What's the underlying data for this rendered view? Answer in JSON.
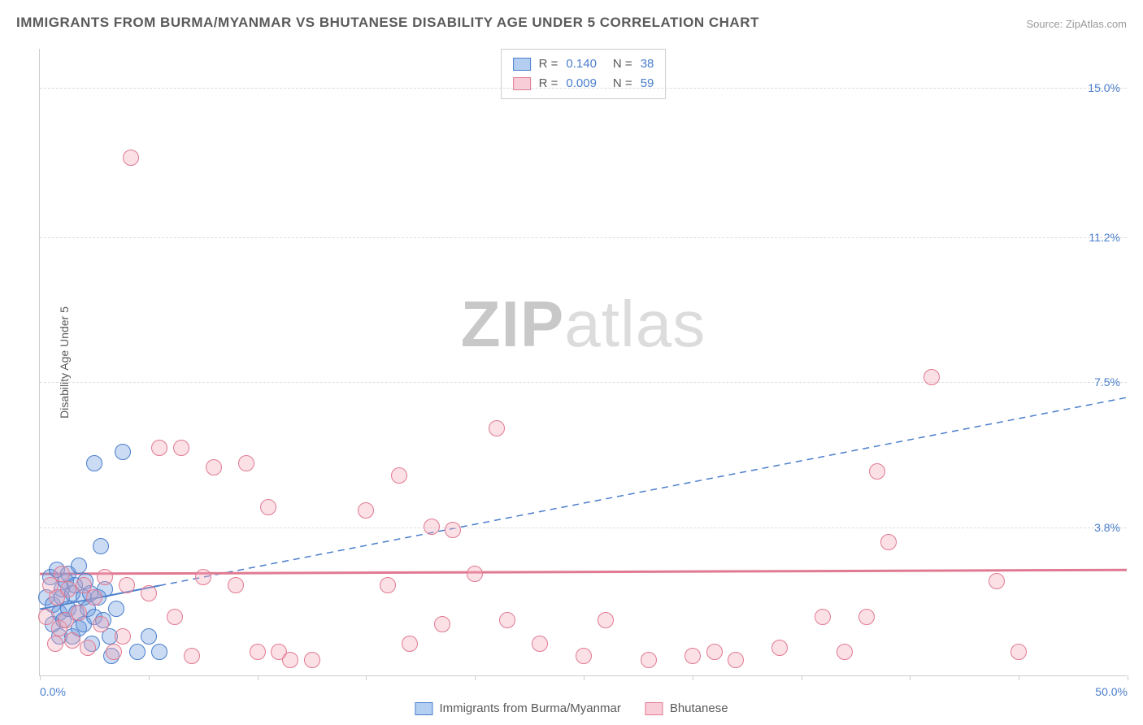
{
  "title": "IMMIGRANTS FROM BURMA/MYANMAR VS BHUTANESE DISABILITY AGE UNDER 5 CORRELATION CHART",
  "source": "Source: ZipAtlas.com",
  "ylabel": "Disability Age Under 5",
  "watermark_a": "ZIP",
  "watermark_b": "atlas",
  "chart": {
    "type": "scatter",
    "background_color": "#ffffff",
    "grid_color": "#dddddd",
    "axis_color": "#cccccc",
    "xlim": [
      0,
      50
    ],
    "ylim": [
      0,
      16
    ],
    "x_ticks": [
      0,
      5,
      10,
      15,
      20,
      25,
      30,
      35,
      40,
      45,
      50
    ],
    "x_tick_labels": {
      "0": "0.0%",
      "50": "50.0%"
    },
    "y_gridlines": [
      3.8,
      7.5,
      11.2,
      15.0
    ],
    "y_tick_labels": [
      "3.8%",
      "7.5%",
      "11.2%",
      "15.0%"
    ],
    "tick_label_color": "#4a7ecc",
    "label_fontsize": 14,
    "title_fontsize": 17,
    "title_color": "#5a5a5a",
    "marker_radius": 10,
    "marker_border_width": 1.5,
    "marker_fill_opacity": 0.35,
    "series": [
      {
        "name": "Immigrants from Burma/Myanmar",
        "color": "#6699dd",
        "border_color": "#4a7ecc",
        "R": "0.140",
        "N": "38",
        "trend": {
          "x1": 0,
          "y1": 1.7,
          "x2": 5.5,
          "y2": 2.3,
          "style": "solid",
          "width": 2
        },
        "trend_ext": {
          "x1": 5.5,
          "y1": 2.3,
          "x2": 50,
          "y2": 7.1,
          "style": "dashed",
          "width": 1.5
        },
        "points": [
          [
            0.3,
            2.0
          ],
          [
            0.5,
            2.5
          ],
          [
            0.6,
            1.3
          ],
          [
            0.6,
            1.8
          ],
          [
            0.8,
            2.7
          ],
          [
            0.9,
            1.0
          ],
          [
            0.9,
            1.6
          ],
          [
            1.0,
            2.0
          ],
          [
            1.0,
            2.2
          ],
          [
            1.1,
            1.4
          ],
          [
            1.2,
            2.4
          ],
          [
            1.3,
            1.7
          ],
          [
            1.3,
            2.6
          ],
          [
            1.5,
            2.1
          ],
          [
            1.5,
            1.0
          ],
          [
            1.6,
            2.3
          ],
          [
            1.7,
            1.6
          ],
          [
            1.8,
            2.8
          ],
          [
            1.8,
            1.2
          ],
          [
            2.0,
            2.0
          ],
          [
            2.0,
            1.3
          ],
          [
            2.1,
            2.4
          ],
          [
            2.2,
            1.7
          ],
          [
            2.3,
            2.1
          ],
          [
            2.4,
            0.8
          ],
          [
            2.5,
            1.5
          ],
          [
            2.7,
            2.0
          ],
          [
            2.8,
            3.3
          ],
          [
            2.9,
            1.4
          ],
          [
            3.0,
            2.2
          ],
          [
            3.2,
            1.0
          ],
          [
            3.3,
            0.5
          ],
          [
            3.5,
            1.7
          ],
          [
            2.5,
            5.4
          ],
          [
            3.8,
            5.7
          ],
          [
            4.5,
            0.6
          ],
          [
            5.0,
            1.0
          ],
          [
            5.5,
            0.6
          ]
        ]
      },
      {
        "name": "Bhutanese",
        "color": "#f4a6b8",
        "border_color": "#e07a92",
        "R": "0.009",
        "N": "59",
        "trend": {
          "x1": 0,
          "y1": 2.6,
          "x2": 50,
          "y2": 2.7,
          "style": "solid",
          "width": 3
        },
        "points": [
          [
            0.3,
            1.5
          ],
          [
            0.5,
            2.3
          ],
          [
            0.7,
            0.8
          ],
          [
            0.8,
            2.0
          ],
          [
            0.9,
            1.2
          ],
          [
            1.0,
            2.6
          ],
          [
            1.2,
            1.4
          ],
          [
            1.3,
            2.2
          ],
          [
            1.5,
            0.9
          ],
          [
            1.8,
            1.6
          ],
          [
            2.0,
            2.3
          ],
          [
            2.2,
            0.7
          ],
          [
            2.5,
            2.0
          ],
          [
            2.8,
            1.3
          ],
          [
            3.0,
            2.5
          ],
          [
            3.4,
            0.6
          ],
          [
            3.8,
            1.0
          ],
          [
            4.0,
            2.3
          ],
          [
            4.2,
            13.2
          ],
          [
            5.0,
            2.1
          ],
          [
            5.5,
            5.8
          ],
          [
            6.2,
            1.5
          ],
          [
            6.5,
            5.8
          ],
          [
            7.0,
            0.5
          ],
          [
            7.5,
            2.5
          ],
          [
            8.0,
            5.3
          ],
          [
            9.0,
            2.3
          ],
          [
            9.5,
            5.4
          ],
          [
            10.0,
            0.6
          ],
          [
            10.5,
            4.3
          ],
          [
            11.0,
            0.6
          ],
          [
            11.5,
            0.4
          ],
          [
            12.5,
            0.4
          ],
          [
            15.0,
            4.2
          ],
          [
            16.0,
            2.3
          ],
          [
            16.5,
            5.1
          ],
          [
            17.0,
            0.8
          ],
          [
            18.0,
            3.8
          ],
          [
            18.5,
            1.3
          ],
          [
            19.0,
            3.7
          ],
          [
            20.0,
            2.6
          ],
          [
            21.0,
            6.3
          ],
          [
            21.5,
            1.4
          ],
          [
            23.0,
            0.8
          ],
          [
            25.0,
            0.5
          ],
          [
            26.0,
            1.4
          ],
          [
            28.0,
            0.4
          ],
          [
            30.0,
            0.5
          ],
          [
            31.0,
            0.6
          ],
          [
            32.0,
            0.4
          ],
          [
            34.0,
            0.7
          ],
          [
            36.0,
            1.5
          ],
          [
            37.0,
            0.6
          ],
          [
            38.0,
            1.5
          ],
          [
            38.5,
            5.2
          ],
          [
            39.0,
            3.4
          ],
          [
            41.0,
            7.6
          ],
          [
            44.0,
            2.4
          ],
          [
            45.0,
            0.6
          ]
        ]
      }
    ]
  },
  "legend_top": {
    "rows": [
      {
        "swatch_fill": "#b3cef0",
        "swatch_border": "#4a7ecc",
        "r_label": "R =",
        "r_val": "0.140",
        "n_label": "N =",
        "n_val": "38"
      },
      {
        "swatch_fill": "#f8cdd8",
        "swatch_border": "#e07a92",
        "r_label": "R =",
        "r_val": "0.009",
        "n_label": "N =",
        "n_val": "59"
      }
    ]
  },
  "legend_bottom": {
    "items": [
      {
        "swatch_fill": "#b3cef0",
        "swatch_border": "#4a7ecc",
        "label": "Immigrants from Burma/Myanmar"
      },
      {
        "swatch_fill": "#f8cdd8",
        "swatch_border": "#e07a92",
        "label": "Bhutanese"
      }
    ]
  }
}
